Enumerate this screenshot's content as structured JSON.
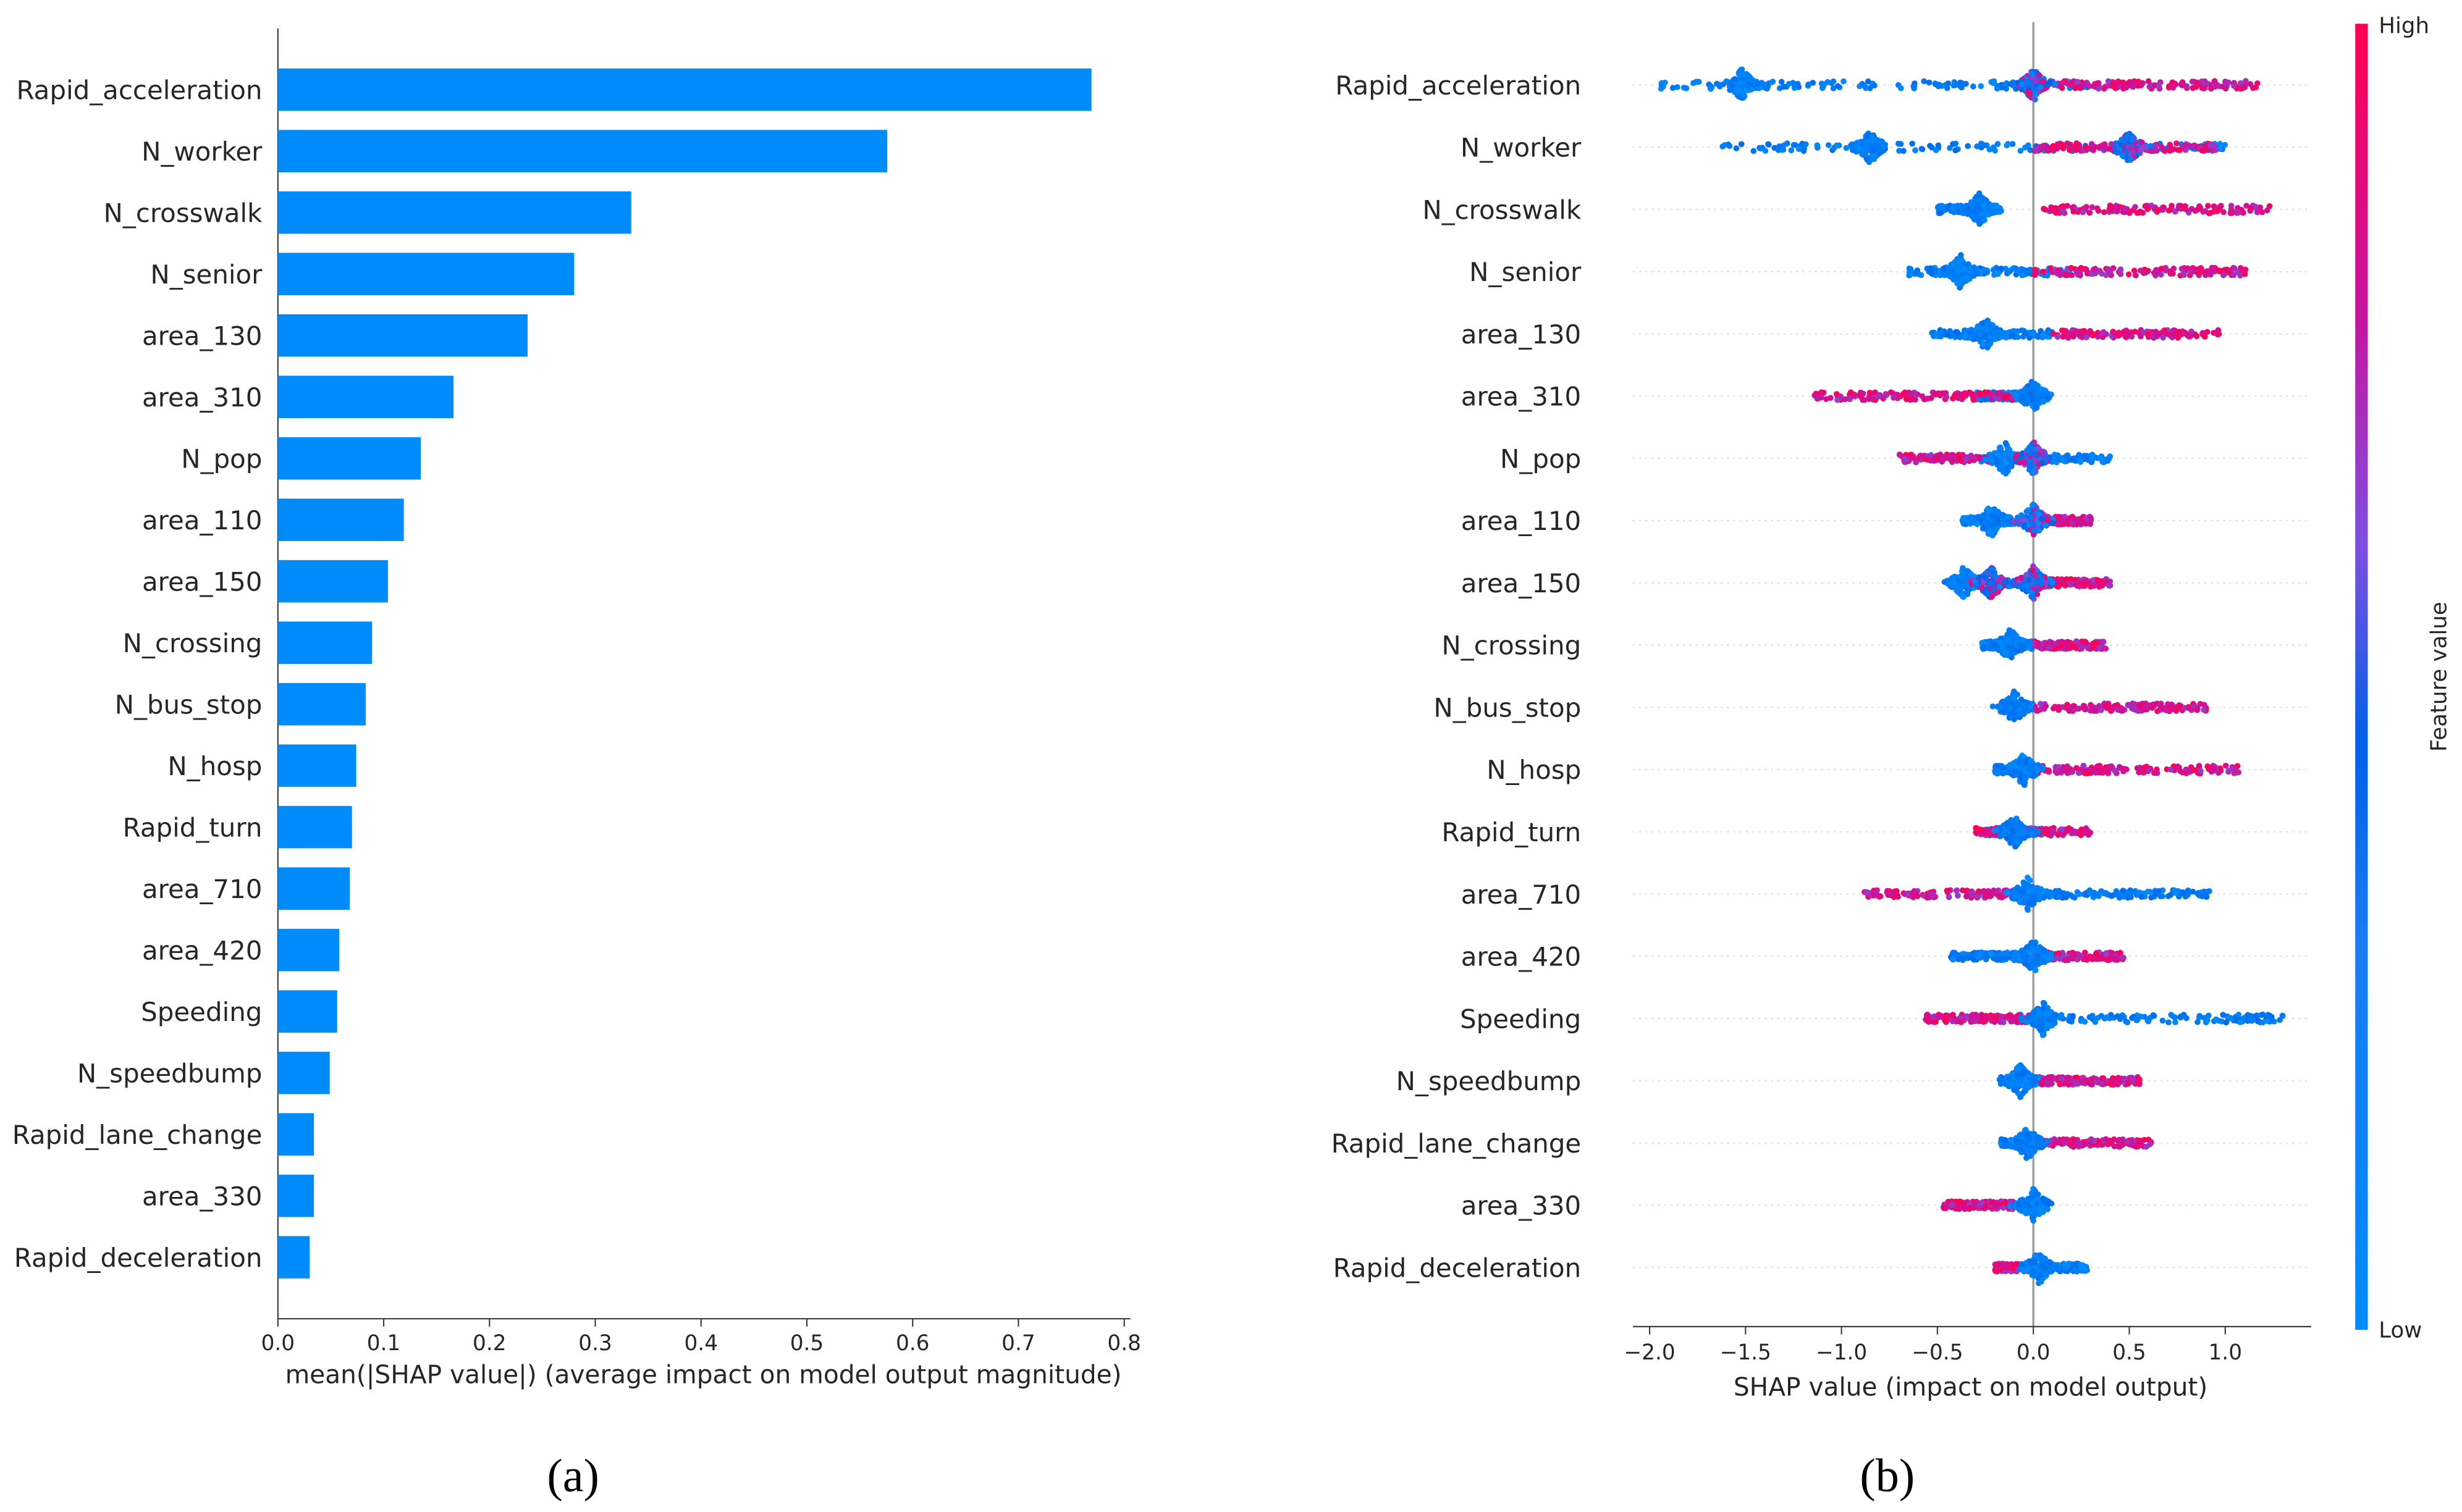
{
  "chart_data": [
    {
      "type": "bar",
      "panel_label": "(a)",
      "orientation": "horizontal",
      "categories": [
        "Rapid_acceleration",
        "N_worker",
        "N_crosswalk",
        "N_senior",
        "area_130",
        "area_310",
        "N_pop",
        "area_110",
        "area_150",
        "N_crossing",
        "N_bus_stop",
        "N_hosp",
        "Rapid_turn",
        "area_710",
        "area_420",
        "Speeding",
        "N_speedbump",
        "Rapid_lane_change",
        "area_330",
        "Rapid_deceleration"
      ],
      "values": [
        0.769,
        0.576,
        0.334,
        0.28,
        0.236,
        0.166,
        0.135,
        0.119,
        0.104,
        0.089,
        0.083,
        0.074,
        0.07,
        0.068,
        0.058,
        0.056,
        0.049,
        0.034,
        0.034,
        0.03
      ],
      "xlabel": "mean(|SHAP value|) (average impact on model output magnitude)",
      "xlim": [
        0,
        0.8
      ],
      "xticks": [
        "0.0",
        "0.1",
        "0.2",
        "0.3",
        "0.4",
        "0.5",
        "0.6",
        "0.7",
        "0.8"
      ],
      "color": "#008bfb"
    },
    {
      "type": "scatter",
      "subtype": "beeswarm",
      "panel_label": "(b)",
      "xlabel": "SHAP value (impact on model output)",
      "xlim": [
        -2.1,
        1.45
      ],
      "xticks": [
        "-2.0",
        "-1.5",
        "-1.0",
        "-0.5",
        "0.0",
        "0.5",
        "1.0"
      ],
      "colorbar": {
        "label": "Feature value",
        "high": "High",
        "low": "Low",
        "high_color": "#ff0052",
        "low_color": "#008bfb"
      },
      "series": [
        {
          "feature": "Rapid_acceleration",
          "low_range": [
            -1.95,
            0.3
          ],
          "high_range": [
            0.1,
            1.17
          ],
          "modes": [
            -1.52,
            0.0
          ]
        },
        {
          "feature": "N_worker",
          "low_range": [
            -1.62,
            1.0
          ],
          "high_range": [
            0.0,
            0.95
          ],
          "modes": [
            -0.85,
            0.5
          ]
        },
        {
          "feature": "N_crosswalk",
          "low_range": [
            -0.5,
            -0.17
          ],
          "high_range": [
            0.05,
            1.25
          ],
          "modes": [
            -0.28
          ]
        },
        {
          "feature": "N_senior",
          "low_range": [
            -0.65,
            0.2
          ],
          "high_range": [
            0.0,
            1.12
          ],
          "modes": [
            -0.38
          ]
        },
        {
          "feature": "area_130",
          "low_range": [
            -0.53,
            0.1
          ],
          "high_range": [
            0.1,
            0.98
          ],
          "modes": [
            -0.25
          ]
        },
        {
          "feature": "area_310",
          "low_range": [
            -0.3,
            0.05
          ],
          "high_range": [
            -1.15,
            -0.1
          ],
          "modes": [
            0.0
          ]
        },
        {
          "feature": "N_pop",
          "low_range": [
            -0.3,
            0.4
          ],
          "high_range": [
            -0.7,
            0.0
          ],
          "modes": [
            -0.15,
            0.0
          ]
        },
        {
          "feature": "area_110",
          "low_range": [
            -0.37,
            0.0
          ],
          "high_range": [
            0.0,
            0.3
          ],
          "modes": [
            -0.22,
            0.0
          ]
        },
        {
          "feature": "area_150",
          "low_range": [
            -0.4,
            0.1
          ],
          "high_range": [
            0.0,
            0.4
          ],
          "modes": [
            -0.36,
            -0.22,
            0.0
          ]
        },
        {
          "feature": "N_crossing",
          "low_range": [
            -0.27,
            0.0
          ],
          "high_range": [
            0.0,
            0.38
          ],
          "modes": [
            -0.12
          ]
        },
        {
          "feature": "N_bus_stop",
          "low_range": [
            -0.17,
            0.0
          ],
          "high_range": [
            0.0,
            0.9
          ],
          "modes": [
            -0.1
          ]
        },
        {
          "feature": "N_hosp",
          "low_range": [
            -0.2,
            0.0
          ],
          "high_range": [
            0.0,
            1.07
          ],
          "modes": [
            -0.05
          ]
        },
        {
          "feature": "Rapid_turn",
          "low_range": [
            -0.25,
            0.05
          ],
          "high_range": [
            -0.3,
            0.3
          ],
          "modes": [
            -0.1
          ]
        },
        {
          "feature": "area_710",
          "low_range": [
            -0.05,
            0.93
          ],
          "high_range": [
            -0.88,
            0.0
          ],
          "modes": [
            -0.03
          ]
        },
        {
          "feature": "area_420",
          "low_range": [
            -0.43,
            0.05
          ],
          "high_range": [
            0.0,
            0.47
          ],
          "modes": [
            0.0
          ]
        },
        {
          "feature": "Speeding",
          "low_range": [
            -0.1,
            1.3
          ],
          "high_range": [
            -0.57,
            0.0
          ],
          "modes": [
            0.05
          ]
        },
        {
          "feature": "N_speedbump",
          "low_range": [
            -0.17,
            0.05
          ],
          "high_range": [
            0.0,
            0.56
          ],
          "modes": [
            -0.07
          ]
        },
        {
          "feature": "Rapid_lane_change",
          "low_range": [
            -0.17,
            0.05
          ],
          "high_range": [
            0.0,
            0.62
          ],
          "modes": [
            -0.03
          ]
        },
        {
          "feature": "area_330",
          "low_range": [
            -0.05,
            0.0
          ],
          "high_range": [
            -0.47,
            -0.1
          ],
          "modes": [
            0.0
          ]
        },
        {
          "feature": "Rapid_deceleration",
          "low_range": [
            0.0,
            0.28
          ],
          "high_range": [
            -0.2,
            0.0
          ],
          "modes": [
            0.03
          ]
        }
      ]
    }
  ]
}
